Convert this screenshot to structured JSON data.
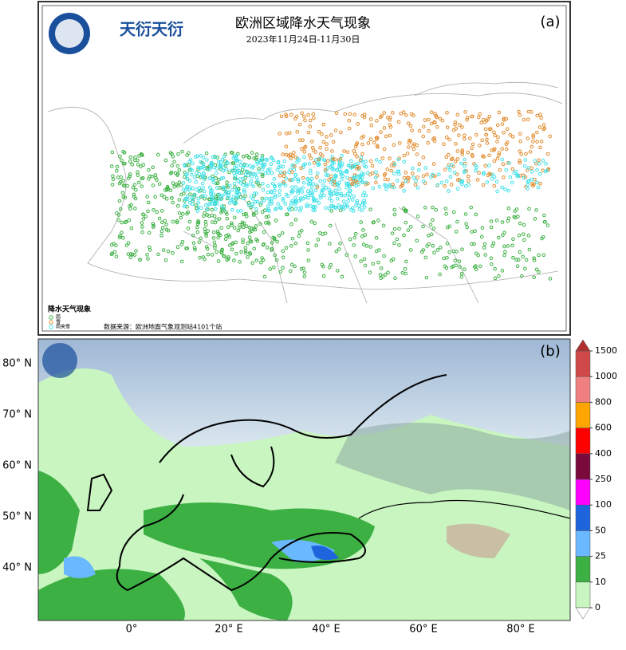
{
  "panel_a": {
    "logo_text": "天衍天衍",
    "title": "欧洲区域降水天气现象",
    "subtitle": "2023年11月24日-11月30日",
    "label": "(a)",
    "legend": {
      "title": "降水天气现象",
      "items": [
        {
          "name": "雨",
          "color": "#3cb043"
        },
        {
          "name": "雪",
          "color": "#e08a2a"
        },
        {
          "name": "雨夹雪",
          "color": "#3ee0e8"
        }
      ]
    },
    "source": "数据来源：欧洲地面气象观测站4101个站"
  },
  "panel_b": {
    "label": "(b)",
    "lat_labels": [
      "80° N",
      "70° N",
      "60° N",
      "50° N",
      "40° N"
    ],
    "lon_labels": [
      "0°",
      "20° E",
      "40° E",
      "60° E",
      "80° E"
    ],
    "colorbar": {
      "ticks": [
        0,
        10,
        25,
        50,
        100,
        250,
        400,
        600,
        800,
        1000,
        1500
      ],
      "colors": [
        "#c8f5c0",
        "#3cb043",
        "#6ab8ff",
        "#1e64dc",
        "#ff00ff",
        "#7a0a3c",
        "#ff0000",
        "#ffa500",
        "#f08080",
        "#d04848"
      ],
      "over_color": "#b03030",
      "under_color": "#ffffff"
    }
  }
}
